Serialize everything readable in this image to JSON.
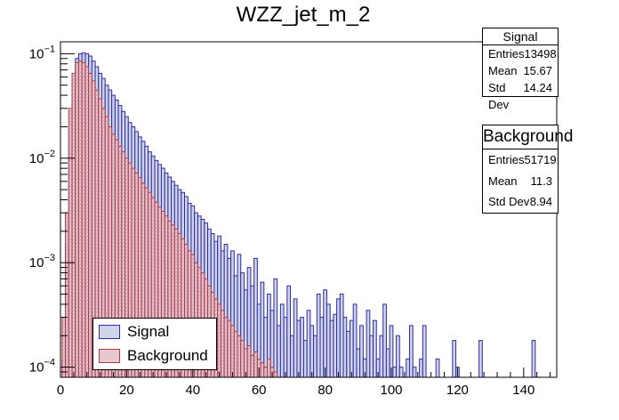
{
  "chart_data": {
    "type": "histogram",
    "title": "WZZ_jet_m_2",
    "xlabel": "",
    "ylabel": "",
    "xlim": [
      0,
      150
    ],
    "ylim": [
      8e-05,
      0.13
    ],
    "y_scale": "log",
    "x_ticks": [
      "0",
      "20",
      "40",
      "60",
      "80",
      "100",
      "120",
      "140"
    ],
    "y_ticks": [
      {
        "value": 0.1,
        "base": "10",
        "exp": "−1"
      },
      {
        "value": 0.01,
        "base": "10",
        "exp": "−2"
      },
      {
        "value": 0.001,
        "base": "10",
        "exp": "−3"
      },
      {
        "value": 0.0001,
        "base": "10",
        "exp": "−4"
      }
    ],
    "bin_width": 1,
    "series": [
      {
        "name": "Signal",
        "line_color": "#2b2bb0",
        "fill_color": "#cfd4e6",
        "bins": [
          {
            "x": 1,
            "y": 0.00012
          },
          {
            "x": 2,
            "y": 0.0015
          },
          {
            "x": 3,
            "y": 0.02
          },
          {
            "x": 4,
            "y": 0.06
          },
          {
            "x": 5,
            "y": 0.09
          },
          {
            "x": 6,
            "y": 0.1
          },
          {
            "x": 7,
            "y": 0.102
          },
          {
            "x": 8,
            "y": 0.1
          },
          {
            "x": 9,
            "y": 0.095
          },
          {
            "x": 10,
            "y": 0.085
          },
          {
            "x": 11,
            "y": 0.075
          },
          {
            "x": 12,
            "y": 0.065
          },
          {
            "x": 13,
            "y": 0.058
          },
          {
            "x": 14,
            "y": 0.05
          },
          {
            "x": 15,
            "y": 0.045
          },
          {
            "x": 16,
            "y": 0.04
          },
          {
            "x": 17,
            "y": 0.036
          },
          {
            "x": 18,
            "y": 0.032
          },
          {
            "x": 19,
            "y": 0.028
          },
          {
            "x": 20,
            "y": 0.025
          },
          {
            "x": 21,
            "y": 0.022
          },
          {
            "x": 22,
            "y": 0.02
          },
          {
            "x": 23,
            "y": 0.018
          },
          {
            "x": 24,
            "y": 0.016
          },
          {
            "x": 25,
            "y": 0.0145
          },
          {
            "x": 26,
            "y": 0.013
          },
          {
            "x": 27,
            "y": 0.0115
          },
          {
            "x": 28,
            "y": 0.0105
          },
          {
            "x": 29,
            "y": 0.0095
          },
          {
            "x": 30,
            "y": 0.0087
          },
          {
            "x": 31,
            "y": 0.008
          },
          {
            "x": 32,
            "y": 0.0072
          },
          {
            "x": 33,
            "y": 0.0066
          },
          {
            "x": 34,
            "y": 0.006
          },
          {
            "x": 35,
            "y": 0.0055
          },
          {
            "x": 36,
            "y": 0.005
          },
          {
            "x": 37,
            "y": 0.0047
          },
          {
            "x": 38,
            "y": 0.0043
          },
          {
            "x": 39,
            "y": 0.0037
          },
          {
            "x": 40,
            "y": 0.0035
          },
          {
            "x": 41,
            "y": 0.003
          },
          {
            "x": 42,
            "y": 0.0028
          },
          {
            "x": 43,
            "y": 0.0026
          },
          {
            "x": 44,
            "y": 0.0024
          },
          {
            "x": 45,
            "y": 0.0021
          },
          {
            "x": 46,
            "y": 0.0019
          },
          {
            "x": 47,
            "y": 0.0016
          },
          {
            "x": 48,
            "y": 0.0018
          },
          {
            "x": 49,
            "y": 0.0013
          },
          {
            "x": 50,
            "y": 0.0015
          },
          {
            "x": 51,
            "y": 0.0011
          },
          {
            "x": 52,
            "y": 0.0013
          },
          {
            "x": 53,
            "y": 0.00075
          },
          {
            "x": 54,
            "y": 0.0012
          },
          {
            "x": 55,
            "y": 0.0008
          },
          {
            "x": 56,
            "y": 0.00055
          },
          {
            "x": 57,
            "y": 0.0009
          },
          {
            "x": 58,
            "y": 0.0006
          },
          {
            "x": 59,
            "y": 0.0011
          },
          {
            "x": 60,
            "y": 0.0004
          },
          {
            "x": 61,
            "y": 0.00065
          },
          {
            "x": 62,
            "y": 0.0003
          },
          {
            "x": 63,
            "y": 0.0005
          },
          {
            "x": 64,
            "y": 0.00035
          },
          {
            "x": 65,
            "y": 0.0007
          },
          {
            "x": 66,
            "y": 0.00025
          },
          {
            "x": 67,
            "y": 0.0004
          },
          {
            "x": 68,
            "y": 0.0003
          },
          {
            "x": 69,
            "y": 0.0006
          },
          {
            "x": 70,
            "y": 0.0002
          },
          {
            "x": 71,
            "y": 0.00045
          },
          {
            "x": 72,
            "y": 0.00028
          },
          {
            "x": 73,
            "y": 0.0003
          },
          {
            "x": 74,
            "y": 0.00018
          },
          {
            "x": 75,
            "y": 0.00035
          },
          {
            "x": 76,
            "y": 0.00025
          },
          {
            "x": 77,
            "y": 0.0002
          },
          {
            "x": 78,
            "y": 0.0005
          },
          {
            "x": 79,
            "y": 0.0003
          },
          {
            "x": 80,
            "y": 0.00055
          },
          {
            "x": 81,
            "y": 0.0004
          },
          {
            "x": 82,
            "y": 0.00028
          },
          {
            "x": 83,
            "y": 0.00032
          },
          {
            "x": 84,
            "y": 0.00045
          },
          {
            "x": 85,
            "y": 0.0005
          },
          {
            "x": 86,
            "y": 0.0003
          },
          {
            "x": 87,
            "y": 0.00022
          },
          {
            "x": 88,
            "y": 0.00028
          },
          {
            "x": 89,
            "y": 0.0004
          },
          {
            "x": 90,
            "y": 0.00015
          },
          {
            "x": 91,
            "y": 0.00025
          },
          {
            "x": 92,
            "y": 0.00012
          },
          {
            "x": 93,
            "y": 0.00035
          },
          {
            "x": 94,
            "y": 0.0002
          },
          {
            "x": 95,
            "y": 0.00028
          },
          {
            "x": 96,
            "y": 0.00012
          },
          {
            "x": 97,
            "y": 0.0002
          },
          {
            "x": 98,
            "y": 0.0004
          },
          {
            "x": 99,
            "y": 0.00015
          },
          {
            "x": 100,
            "y": 0.00025
          },
          {
            "x": 101,
            "y": 0.0001
          },
          {
            "x": 102,
            "y": 0.0002
          },
          {
            "x": 103,
            "y": 0.0001
          },
          {
            "x": 105,
            "y": 0.00012
          },
          {
            "x": 106,
            "y": 0.00025
          },
          {
            "x": 107,
            "y": 0.0001
          },
          {
            "x": 109,
            "y": 0.00012
          },
          {
            "x": 110,
            "y": 0.00025
          },
          {
            "x": 114,
            "y": 0.00012
          },
          {
            "x": 119,
            "y": 0.00018
          },
          {
            "x": 120,
            "y": 0.0001
          },
          {
            "x": 127,
            "y": 0.00018
          },
          {
            "x": 143,
            "y": 0.00018
          }
        ]
      },
      {
        "name": "Background",
        "line_color": "#a83a4e",
        "fill_color": "#e8c8cf",
        "bins": [
          {
            "x": 1,
            "y": 0.0003
          },
          {
            "x": 2,
            "y": 0.003
          },
          {
            "x": 3,
            "y": 0.03
          },
          {
            "x": 4,
            "y": 0.065
          },
          {
            "x": 5,
            "y": 0.082
          },
          {
            "x": 6,
            "y": 0.085
          },
          {
            "x": 7,
            "y": 0.082
          },
          {
            "x": 8,
            "y": 0.075
          },
          {
            "x": 9,
            "y": 0.065
          },
          {
            "x": 10,
            "y": 0.055
          },
          {
            "x": 11,
            "y": 0.045
          },
          {
            "x": 12,
            "y": 0.037
          },
          {
            "x": 13,
            "y": 0.03
          },
          {
            "x": 14,
            "y": 0.025
          },
          {
            "x": 15,
            "y": 0.02
          },
          {
            "x": 16,
            "y": 0.017
          },
          {
            "x": 17,
            "y": 0.015
          },
          {
            "x": 18,
            "y": 0.013
          },
          {
            "x": 19,
            "y": 0.0115
          },
          {
            "x": 20,
            "y": 0.01
          },
          {
            "x": 21,
            "y": 0.009
          },
          {
            "x": 22,
            "y": 0.008
          },
          {
            "x": 23,
            "y": 0.0072
          },
          {
            "x": 24,
            "y": 0.0065
          },
          {
            "x": 25,
            "y": 0.0058
          },
          {
            "x": 26,
            "y": 0.0052
          },
          {
            "x": 27,
            "y": 0.0047
          },
          {
            "x": 28,
            "y": 0.0042
          },
          {
            "x": 29,
            "y": 0.0038
          },
          {
            "x": 30,
            "y": 0.0034
          },
          {
            "x": 31,
            "y": 0.0031
          },
          {
            "x": 32,
            "y": 0.0028
          },
          {
            "x": 33,
            "y": 0.0025
          },
          {
            "x": 34,
            "y": 0.0023
          },
          {
            "x": 35,
            "y": 0.0021
          },
          {
            "x": 36,
            "y": 0.0019
          },
          {
            "x": 37,
            "y": 0.0017
          },
          {
            "x": 38,
            "y": 0.0015
          },
          {
            "x": 39,
            "y": 0.0013
          },
          {
            "x": 40,
            "y": 0.0012
          },
          {
            "x": 41,
            "y": 0.001
          },
          {
            "x": 42,
            "y": 0.0009
          },
          {
            "x": 43,
            "y": 0.0008
          },
          {
            "x": 44,
            "y": 0.0007
          },
          {
            "x": 45,
            "y": 0.0006
          },
          {
            "x": 46,
            "y": 0.00052
          },
          {
            "x": 47,
            "y": 0.00045
          },
          {
            "x": 48,
            "y": 0.0004
          },
          {
            "x": 49,
            "y": 0.00035
          },
          {
            "x": 50,
            "y": 0.0003
          },
          {
            "x": 51,
            "y": 0.00028
          },
          {
            "x": 52,
            "y": 0.00025
          },
          {
            "x": 53,
            "y": 0.00022
          },
          {
            "x": 54,
            "y": 0.0002
          },
          {
            "x": 55,
            "y": 0.00018
          },
          {
            "x": 56,
            "y": 0.00015
          },
          {
            "x": 57,
            "y": 0.00016
          },
          {
            "x": 58,
            "y": 0.00013
          },
          {
            "x": 59,
            "y": 0.00014
          },
          {
            "x": 60,
            "y": 0.00012
          },
          {
            "x": 61,
            "y": 0.00011
          },
          {
            "x": 62,
            "y": 0.0001
          },
          {
            "x": 63,
            "y": 0.00012
          },
          {
            "x": 64,
            "y": 0.0001
          },
          {
            "x": 65,
            "y": 9e-05
          }
        ]
      }
    ],
    "legend": {
      "position": "bottom-left",
      "entries": [
        "Signal",
        "Background"
      ]
    },
    "stats": [
      {
        "title": "Signal",
        "rows": [
          {
            "label": "Entries",
            "value": "13498"
          },
          {
            "label": "Mean",
            "value": "15.67"
          },
          {
            "label": "Std Dev",
            "value": "14.24"
          }
        ]
      },
      {
        "title": "Background",
        "rows": [
          {
            "label": "Entries",
            "value": "51719"
          },
          {
            "label": "Mean",
            "value": "11.3"
          },
          {
            "label": "Std Dev",
            "value": "8.94"
          }
        ]
      }
    ]
  }
}
